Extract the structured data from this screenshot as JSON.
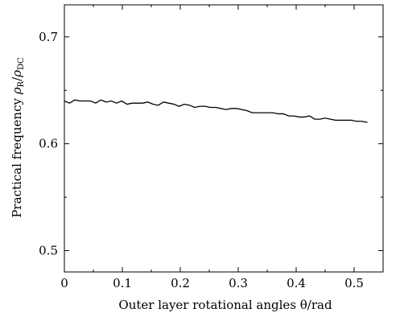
{
  "chart_data": {
    "type": "line",
    "xlabel": "Outer layer rotational angles θ/rad",
    "ylabel_parts": {
      "main": "Practical frequency ",
      "rho1": "ρ",
      "sub1": "R",
      "slash": "/",
      "rho2": "ρ",
      "sub2": "DC"
    },
    "xlim": [
      0,
      0.55
    ],
    "ylim": [
      0.48,
      0.73
    ],
    "x_ticks": [
      0,
      0.1,
      0.2,
      0.3,
      0.4,
      0.5
    ],
    "x_tick_labels": [
      "0",
      "0.1",
      "0.2",
      "0.3",
      "0.4",
      "0.5"
    ],
    "y_ticks": [
      0.5,
      0.6,
      0.7
    ],
    "y_tick_labels": [
      "0.5",
      "0.6",
      "0.7"
    ],
    "grid": false,
    "line_color": "#000000",
    "series": [
      {
        "x": [
          0,
          0.009,
          0.018,
          0.027,
          0.036,
          0.045,
          0.054,
          0.063,
          0.072,
          0.081,
          0.09,
          0.099,
          0.108,
          0.117,
          0.126,
          0.135,
          0.144,
          0.153,
          0.162,
          0.171,
          0.18,
          0.189,
          0.198,
          0.207,
          0.216,
          0.225,
          0.234,
          0.243,
          0.252,
          0.261,
          0.27,
          0.279,
          0.288,
          0.297,
          0.306,
          0.315,
          0.324,
          0.333,
          0.342,
          0.351,
          0.36,
          0.369,
          0.378,
          0.387,
          0.396,
          0.405,
          0.414,
          0.423,
          0.432,
          0.441,
          0.45,
          0.459,
          0.468,
          0.477,
          0.486,
          0.495,
          0.504,
          0.513,
          0.523
        ],
        "y": [
          0.64,
          0.638,
          0.641,
          0.64,
          0.64,
          0.64,
          0.638,
          0.641,
          0.639,
          0.64,
          0.638,
          0.64,
          0.637,
          0.638,
          0.638,
          0.638,
          0.639,
          0.637,
          0.636,
          0.639,
          0.638,
          0.637,
          0.635,
          0.637,
          0.636,
          0.634,
          0.635,
          0.635,
          0.634,
          0.634,
          0.633,
          0.632,
          0.633,
          0.633,
          0.632,
          0.631,
          0.629,
          0.629,
          0.629,
          0.629,
          0.629,
          0.628,
          0.628,
          0.626,
          0.626,
          0.625,
          0.625,
          0.626,
          0.623,
          0.623,
          0.624,
          0.623,
          0.622,
          0.622,
          0.622,
          0.622,
          0.621,
          0.621,
          0.62
        ]
      }
    ]
  }
}
